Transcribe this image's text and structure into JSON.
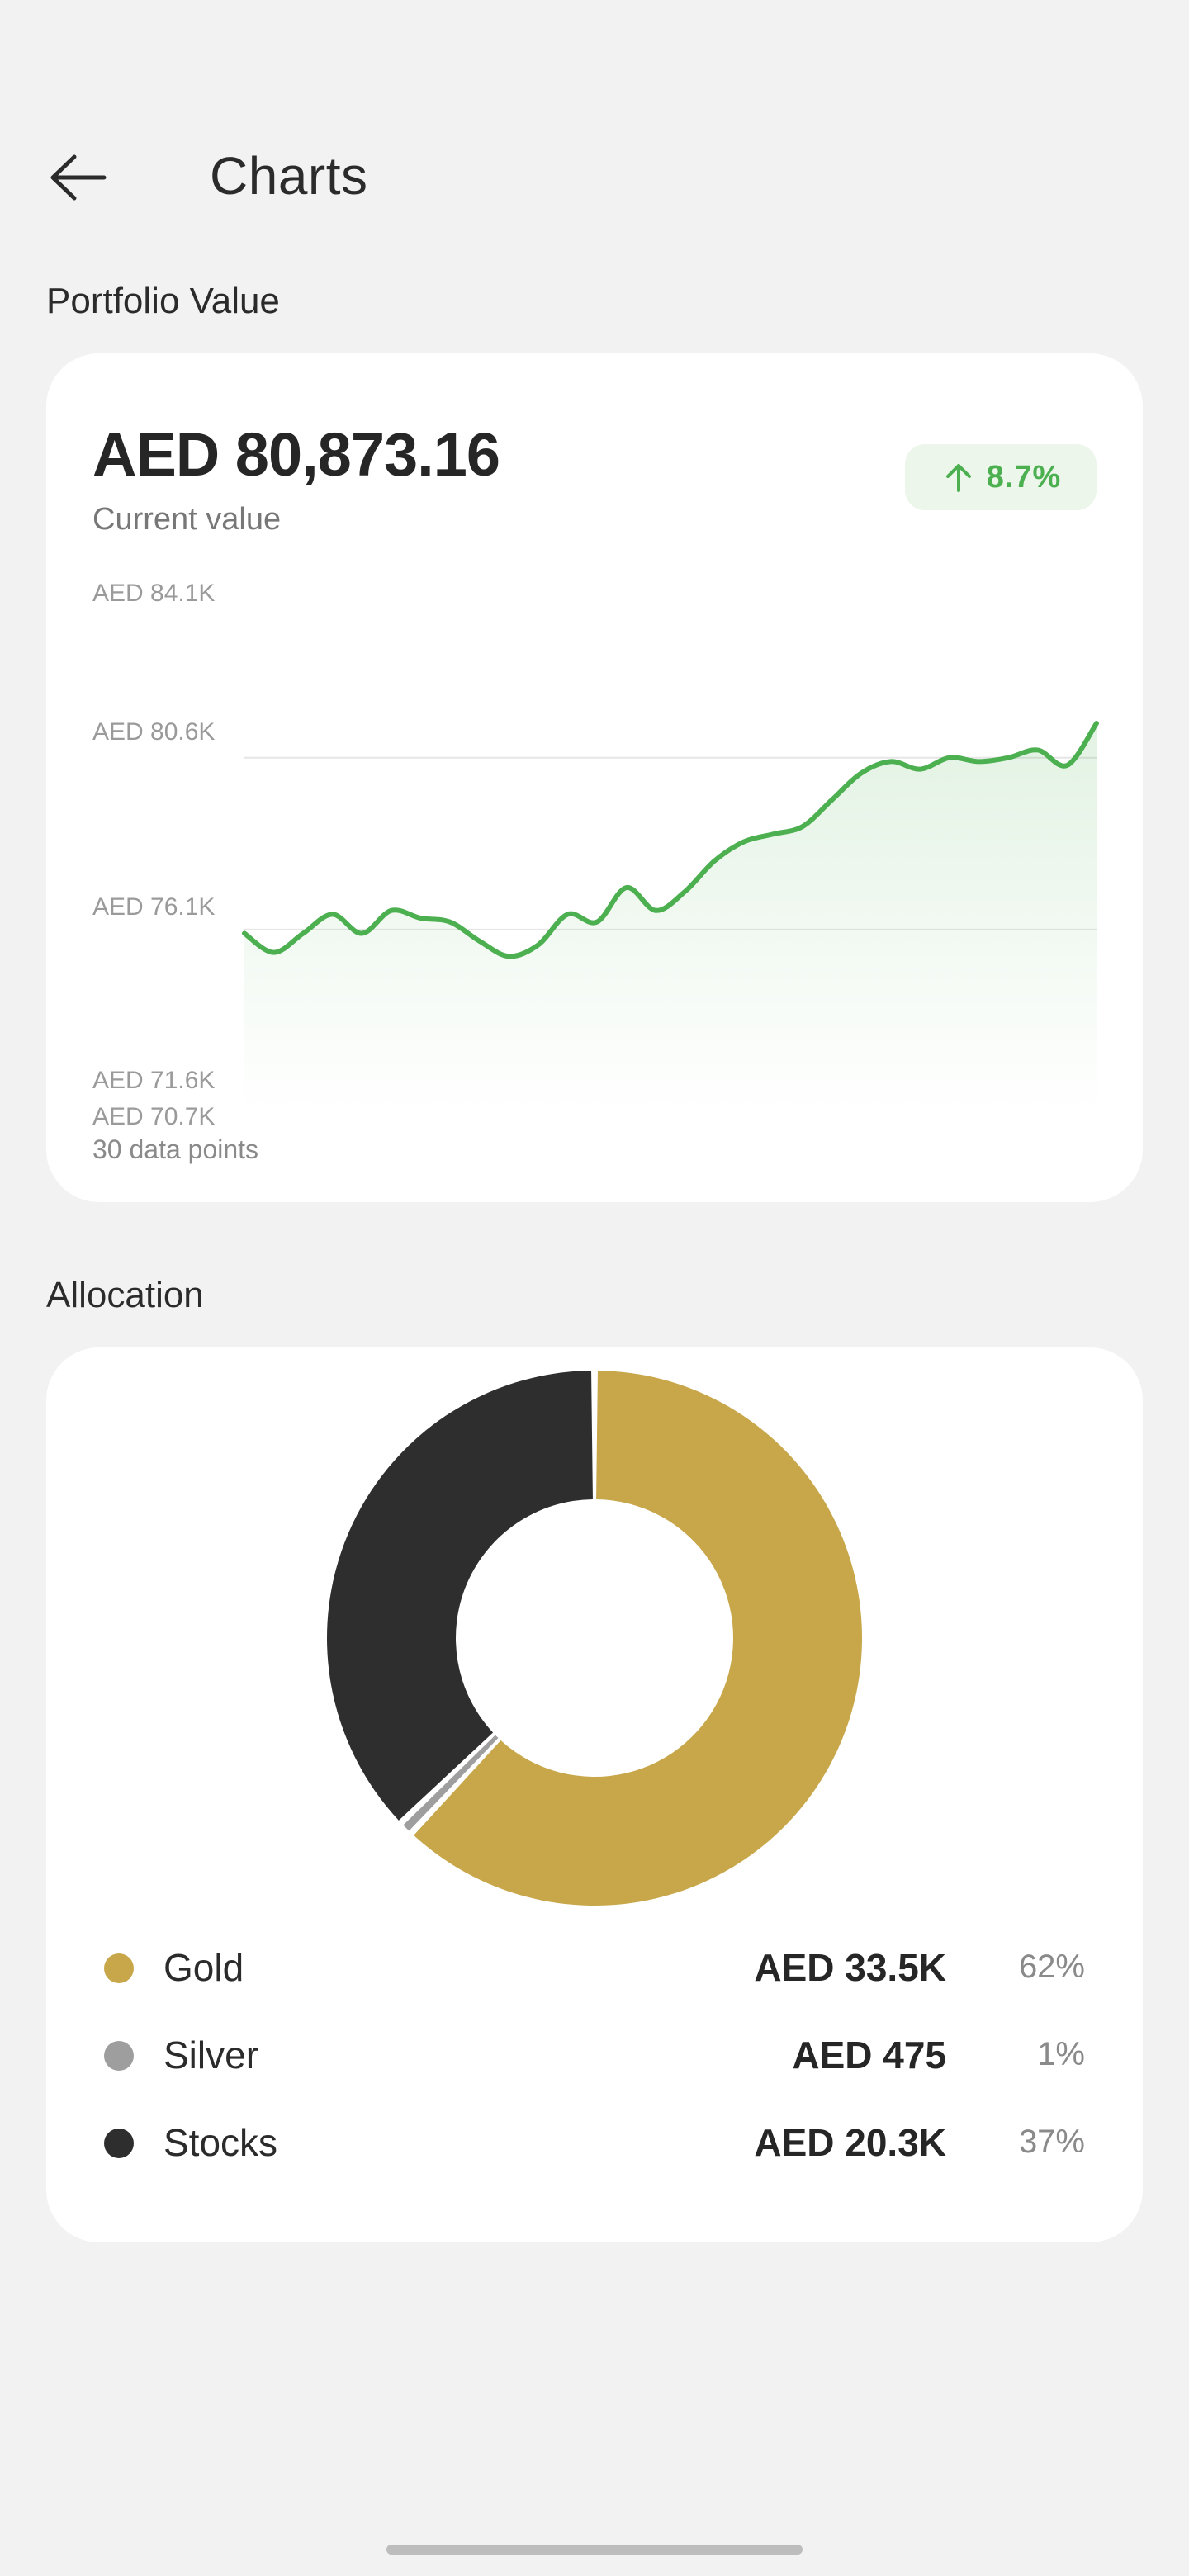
{
  "header": {
    "title": "Charts",
    "back_icon": "arrow-left-icon"
  },
  "portfolio": {
    "section_label": "Portfolio Value",
    "current_value": "AED 80,873.16",
    "current_label": "Current value",
    "change": "8.7%",
    "change_icon": "arrow-up-icon",
    "change_color": "#4caf50",
    "footnote": "30 data points"
  },
  "allocation": {
    "section_label": "Allocation",
    "items": [
      {
        "name": "Gold",
        "amount": "AED 33.5K",
        "percent": "62%",
        "share": 0.62,
        "color": "#c8a74a"
      },
      {
        "name": "Silver",
        "amount": "AED 475",
        "percent": "1%",
        "share": 0.0087,
        "color": "#9e9e9e"
      },
      {
        "name": "Stocks",
        "amount": "AED 20.3K",
        "percent": "37%",
        "share": 0.3713,
        "color": "#2e2e2e"
      }
    ]
  },
  "chart_data": [
    {
      "type": "area",
      "ytick_labels": [
        "AED 84.1K",
        "AED 80.6K",
        "AED 76.1K",
        "AED 71.6K",
        "AED 70.7K"
      ],
      "ytick_values": [
        84100,
        80600,
        76100,
        71600,
        70700
      ],
      "ylim": [
        70700,
        84100
      ],
      "x": [
        1,
        2,
        3,
        4,
        5,
        6,
        7,
        8,
        9,
        10,
        11,
        12,
        13,
        14,
        15,
        16,
        17,
        18,
        19,
        20,
        21,
        22,
        23,
        24,
        25,
        26,
        27,
        28,
        29,
        30
      ],
      "series": [
        {
          "values": [
            75400,
            74900,
            75400,
            75900,
            75400,
            76000,
            75800,
            75700,
            75200,
            74800,
            75100,
            75900,
            75700,
            76600,
            76000,
            76500,
            77300,
            77800,
            78000,
            78200,
            78900,
            79600,
            79900,
            79700,
            80000,
            79900,
            80000,
            80200,
            79800,
            80900
          ],
          "color": "#4caf50"
        }
      ],
      "gridlines": [
        80000,
        75500
      ],
      "legend": "none"
    },
    {
      "type": "pie",
      "style": "donut",
      "categories": [
        "Gold",
        "Silver",
        "Stocks"
      ],
      "values": [
        62,
        1,
        37
      ],
      "colors": [
        "#c8a74a",
        "#9e9e9e",
        "#2e2e2e"
      ]
    }
  ]
}
